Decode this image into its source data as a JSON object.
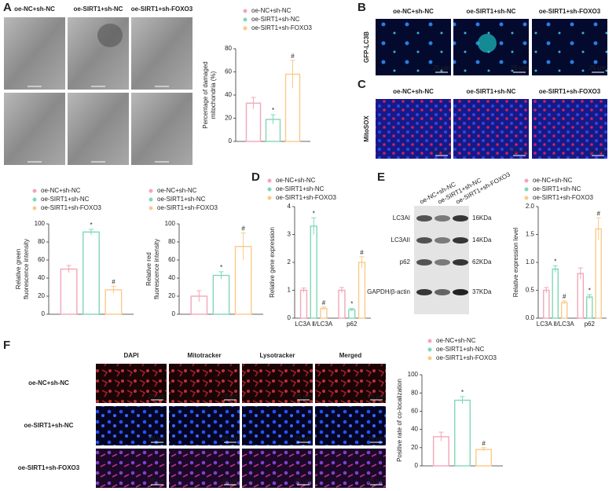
{
  "panels": {
    "letters": [
      "A",
      "B",
      "C",
      "D",
      "E",
      "F"
    ],
    "tem": {
      "headers": [
        "oe-NC+sh-NC",
        "oe-SIRT1+sh-NC",
        "oe-SIRT1+sh-FOXO3"
      ]
    },
    "gfp": {
      "label": "GFP-LC3B",
      "headers": [
        "oe-NC+sh-NC",
        "oe-SIRT1+sh-NC",
        "oe-SIRT1+sh-FOXO3"
      ],
      "scale": "25 μm"
    },
    "mitosox": {
      "label": "MitoSOX",
      "headers": [
        "oe-NC+sh-NC",
        "oe-SIRT1+sh-NC",
        "oe-SIRT1+sh-FOXO3"
      ],
      "scale": "50 μm"
    },
    "blot": {
      "columns": [
        "oe-NC+sh-NC",
        "oe-SIRT1+sh-NC",
        "oe-SIRT1+sh-FOXO3"
      ],
      "bands": [
        "LC3AI",
        "LC3AII",
        "p62",
        "GAPDH/β-actin"
      ],
      "sizes": [
        "16KDa",
        "14KDa",
        "62KDa",
        "37KDa"
      ]
    },
    "coloc": {
      "headers": [
        "DAPI",
        "Mitotracker",
        "Lysotracker",
        "Merged"
      ],
      "rows": [
        "oe-NC+sh-NC",
        "oe-SIRT1+sh-NC",
        "oe-SIRT1+sh-FOXO3"
      ],
      "scale": "25 μm"
    }
  },
  "chart_data": [
    {
      "type": "bar",
      "ylabel": [
        "Percentage of damaged",
        "mitochondria (%)"
      ],
      "ylim": [
        0,
        80
      ],
      "yticks": [
        0,
        20,
        40,
        60,
        80
      ],
      "series": [
        {
          "name": "oe-NC+sh-NC",
          "color": "#f4a6b8",
          "values": [
            33
          ],
          "errors": [
            5
          ],
          "annotations": [
            null
          ]
        },
        {
          "name": "oe-SIRT1+sh-NC",
          "color": "#7fd8b8",
          "values": [
            19
          ],
          "errors": [
            4
          ],
          "annotations": [
            "*"
          ]
        },
        {
          "name": "oe-SIRT1+sh-FOXO3",
          "color": "#fbc98a",
          "values": [
            58
          ],
          "errors": [
            12
          ],
          "annotations": [
            "#"
          ]
        }
      ]
    },
    {
      "type": "bar",
      "ylabel": [
        "Relative green",
        "fluorescence intensity"
      ],
      "ylim": [
        0,
        100
      ],
      "yticks": [
        0,
        20,
        40,
        60,
        80,
        100
      ],
      "series": [
        {
          "name": "oe-NC+sh-NC",
          "color": "#f4a6b8",
          "values": [
            50
          ],
          "errors": [
            4
          ],
          "annotations": [
            null
          ]
        },
        {
          "name": "oe-SIRT1+sh-NC",
          "color": "#7fd8b8",
          "values": [
            91
          ],
          "errors": [
            3
          ],
          "annotations": [
            "*"
          ]
        },
        {
          "name": "oe-SIRT1+sh-FOXO3",
          "color": "#fbc98a",
          "values": [
            27
          ],
          "errors": [
            4
          ],
          "annotations": [
            "#"
          ]
        }
      ]
    },
    {
      "type": "bar",
      "ylabel": [
        "Relative red",
        "fluorescence intensity"
      ],
      "ylim": [
        0,
        100
      ],
      "yticks": [
        0,
        20,
        40,
        60,
        80,
        100
      ],
      "series": [
        {
          "name": "oe-NC+sh-NC",
          "color": "#f4a6b8",
          "values": [
            20
          ],
          "errors": [
            6
          ],
          "annotations": [
            null
          ]
        },
        {
          "name": "oe-SIRT1+sh-NC",
          "color": "#7fd8b8",
          "values": [
            43
          ],
          "errors": [
            4
          ],
          "annotations": [
            "*"
          ]
        },
        {
          "name": "oe-SIRT1+sh-FOXO3",
          "color": "#fbc98a",
          "values": [
            75
          ],
          "errors": [
            15
          ],
          "annotations": [
            "#"
          ]
        }
      ]
    },
    {
      "type": "bar",
      "ylabel": [
        "Relative gene expression"
      ],
      "ylim": [
        0,
        4
      ],
      "yticks": [
        0,
        1,
        2,
        3,
        4
      ],
      "categories": [
        "LC3A Ⅱ/LC3A",
        "p62"
      ],
      "series": [
        {
          "name": "oe-NC+sh-NC",
          "color": "#f4a6b8",
          "values": [
            1.0,
            1.0
          ],
          "errors": [
            0.08,
            0.1
          ],
          "annotations": [
            null,
            null
          ]
        },
        {
          "name": "oe-SIRT1+sh-NC",
          "color": "#7fd8b8",
          "values": [
            3.3,
            0.3
          ],
          "errors": [
            0.3,
            0.05
          ],
          "annotations": [
            "*",
            "*"
          ]
        },
        {
          "name": "oe-SIRT1+sh-FOXO3",
          "color": "#fbc98a",
          "values": [
            0.35,
            2.0
          ],
          "errors": [
            0.05,
            0.2
          ],
          "annotations": [
            "#",
            "#"
          ]
        }
      ]
    },
    {
      "type": "bar",
      "ylabel": [
        "Relative expression level"
      ],
      "ylim": [
        0,
        2
      ],
      "yticks": [
        {
          "value": 0,
          "label": "0.0"
        },
        0.5,
        {
          "value": 1,
          "label": "1.0"
        },
        1.5,
        {
          "value": 2,
          "label": "2.0"
        }
      ],
      "categories": [
        "LC3A Ⅱ/LC3A",
        "p62"
      ],
      "series": [
        {
          "name": "oe-NC+sh-NC",
          "color": "#f4a6b8",
          "values": [
            0.5,
            0.8
          ],
          "errors": [
            0.05,
            0.1
          ],
          "annotations": [
            null,
            null
          ]
        },
        {
          "name": "oe-SIRT1+sh-NC",
          "color": "#7fd8b8",
          "values": [
            0.88,
            0.38
          ],
          "errors": [
            0.06,
            0.04
          ],
          "annotations": [
            "*",
            "*"
          ]
        },
        {
          "name": "oe-SIRT1+sh-FOXO3",
          "color": "#fbc98a",
          "values": [
            0.28,
            1.6
          ],
          "errors": [
            0.03,
            0.2
          ],
          "annotations": [
            "#",
            "#"
          ]
        }
      ]
    },
    {
      "type": "bar",
      "ylabel": [
        "Positive rate of co-localization"
      ],
      "ylim": [
        0,
        100
      ],
      "yticks": [
        0,
        20,
        40,
        60,
        80,
        100
      ],
      "series": [
        {
          "name": "oe-NC+sh-NC",
          "color": "#f4a6b8",
          "values": [
            32
          ],
          "errors": [
            5
          ],
          "annotations": [
            null
          ]
        },
        {
          "name": "oe-SIRT1+sh-NC",
          "color": "#7fd8b8",
          "values": [
            72
          ],
          "errors": [
            4
          ],
          "annotations": [
            "*"
          ]
        },
        {
          "name": "oe-SIRT1+sh-FOXO3",
          "color": "#fbc98a",
          "values": [
            18
          ],
          "errors": [
            2
          ],
          "annotations": [
            "#"
          ]
        }
      ]
    }
  ]
}
